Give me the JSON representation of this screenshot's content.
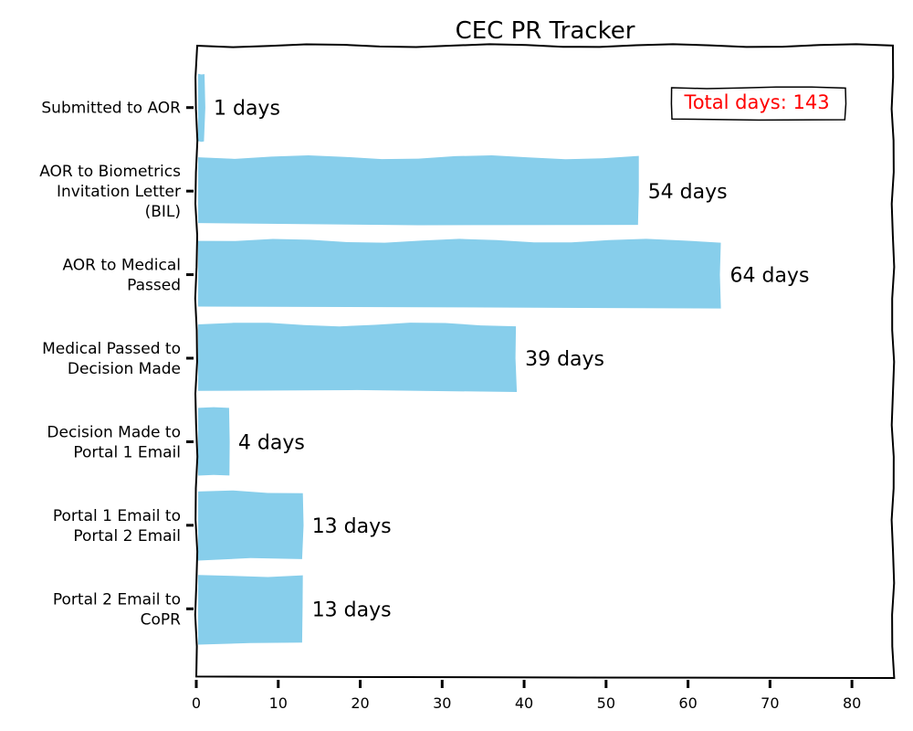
{
  "chart_data": {
    "type": "bar",
    "orientation": "horizontal",
    "title": "CEC PR Tracker",
    "xlabel": "",
    "ylabel": "",
    "xlim": [
      0,
      85
    ],
    "xticks": [
      0,
      10,
      20,
      30,
      40,
      50,
      60,
      70,
      80
    ],
    "categories": [
      "Submitted to AOR",
      "AOR to Biometrics Invitation Letter (BIL)",
      "AOR to Medical Passed",
      "Medical Passed to Decision Made",
      "Decision Made to Portal 1 Email",
      "Portal 1 Email to Portal 2 Email",
      "Portal 2 Email to CoPR"
    ],
    "category_lines": [
      [
        "Submitted to AOR"
      ],
      [
        "AOR to Biometrics",
        "Invitation Letter",
        "(BIL)"
      ],
      [
        "AOR to Medical",
        "Passed"
      ],
      [
        "Medical Passed to",
        "Decision Made"
      ],
      [
        "Decision Made to",
        "Portal 1 Email"
      ],
      [
        "Portal 1 Email to",
        "Portal 2 Email"
      ],
      [
        "Portal 2 Email to",
        "CoPR"
      ]
    ],
    "values": [
      1,
      54,
      64,
      39,
      4,
      13,
      13
    ],
    "value_labels": [
      "1 days",
      "54 days",
      "64 days",
      "39 days",
      "4 days",
      "13 days",
      "13 days"
    ],
    "annotation": "Total days: 143",
    "annotation_position": "top-right",
    "bar_color": "#87CEEB",
    "annotation_color": "#ff0000",
    "grid": false,
    "legend": "none",
    "style": "xkcd"
  }
}
